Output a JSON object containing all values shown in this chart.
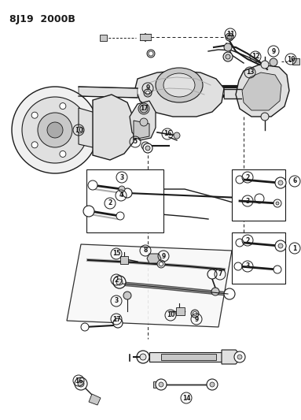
{
  "title": "8J19  2000B",
  "bg": "#ffffff",
  "lc": "#1a1a1a",
  "gray1": "#c8c8c8",
  "gray2": "#e0e0e0",
  "gray3": "#aaaaaa",
  "dpi": 100,
  "fw": 3.83,
  "fh": 5.33
}
